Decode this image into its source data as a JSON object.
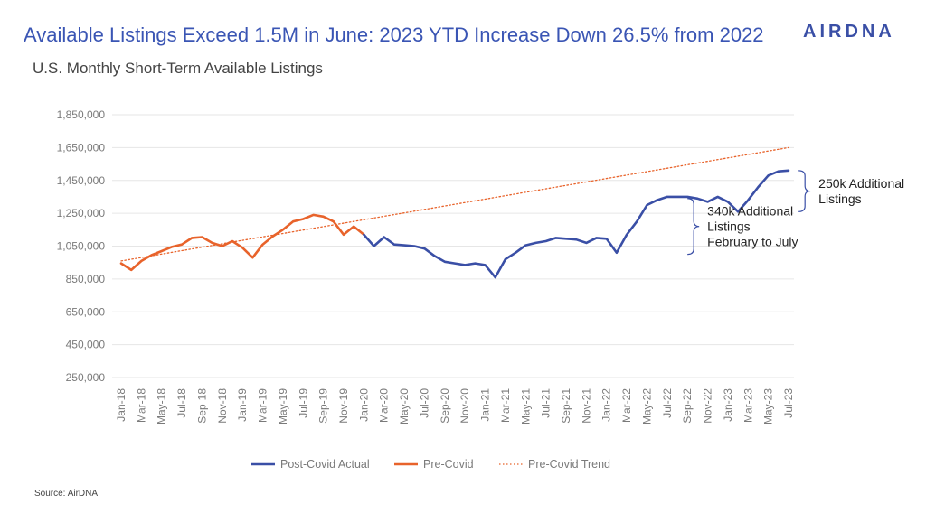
{
  "header": {
    "title": "Available Listings Exceed 1.5M in June: 2023 YTD Increase Down 26.5% from 2022",
    "logo": "AIRDNA",
    "subtitle": "U.S. Monthly Short-Term Available Listings"
  },
  "footer": {
    "source": "Source: AirDNA"
  },
  "chart_data": {
    "type": "line",
    "title": "U.S. Monthly Short-Term Available Listings",
    "xlabel": "",
    "ylabel": "",
    "ylim": [
      250000,
      1850000
    ],
    "y_ticks": [
      250000,
      450000,
      650000,
      850000,
      1050000,
      1250000,
      1450000,
      1650000,
      1850000
    ],
    "y_tick_labels": [
      "250,000",
      "450,000",
      "650,000",
      "850,000",
      "1,050,000",
      "1,250,000",
      "1,450,000",
      "1,650,000",
      "1,850,000"
    ],
    "x_tick_labels": [
      "Jan-18",
      "Mar-18",
      "May-18",
      "Jul-18",
      "Sep-18",
      "Nov-18",
      "Jan-19",
      "Mar-19",
      "May-19",
      "Jul-19",
      "Sep-19",
      "Nov-19",
      "Jan-20",
      "Mar-20",
      "May-20",
      "Jul-20",
      "Sep-20",
      "Nov-20",
      "Jan-21",
      "Mar-21",
      "May-21",
      "Jul-21",
      "Sep-21",
      "Nov-21",
      "Jan-22",
      "Mar-22",
      "May-22",
      "Jul-22",
      "Sep-22",
      "Nov-22",
      "Jan-23",
      "Mar-23",
      "May-23",
      "Jul-23"
    ],
    "x_start": "Jan-18",
    "grid": true,
    "legend_position": "bottom",
    "series": [
      {
        "name": "Pre-Covid",
        "color": "#e8632b",
        "style": "solid",
        "start_index": 0,
        "values": [
          945000,
          905000,
          960000,
          995000,
          1020000,
          1045000,
          1060000,
          1100000,
          1105000,
          1070000,
          1050000,
          1080000,
          1040000,
          980000,
          1060000,
          1110000,
          1150000,
          1200000,
          1215000,
          1240000,
          1230000,
          1200000,
          1120000,
          1170000,
          1120000
        ]
      },
      {
        "name": "Post-Covid Actual",
        "color": "#3a4fa6",
        "style": "solid",
        "start_index": 24,
        "values": [
          1120000,
          1050000,
          1105000,
          1060000,
          1055000,
          1050000,
          1035000,
          990000,
          955000,
          945000,
          935000,
          945000,
          935000,
          860000,
          970000,
          1010000,
          1055000,
          1070000,
          1080000,
          1100000,
          1095000,
          1090000,
          1070000,
          1100000,
          1095000,
          1010000,
          1120000,
          1200000,
          1300000,
          1330000,
          1350000,
          1350000,
          1350000,
          1340000,
          1320000,
          1350000,
          1320000,
          1260000,
          1330000,
          1410000,
          1480000,
          1505000,
          1510000
        ]
      },
      {
        "name": "Pre-Covid Trend",
        "color": "#e8632b",
        "style": "dotted",
        "start_index": 0,
        "values": [
          960000,
          1650000
        ],
        "value_indices": [
          0,
          66
        ]
      }
    ],
    "annotations": [
      {
        "lines": [
          "250k Additional",
          "Listings"
        ],
        "from": 1260000,
        "to": 1510000,
        "at_index": 67
      },
      {
        "lines": [
          "340k Additional",
          "Listings",
          "February to July"
        ],
        "from": 1000000,
        "to": 1340000,
        "at_index": 56
      }
    ]
  }
}
